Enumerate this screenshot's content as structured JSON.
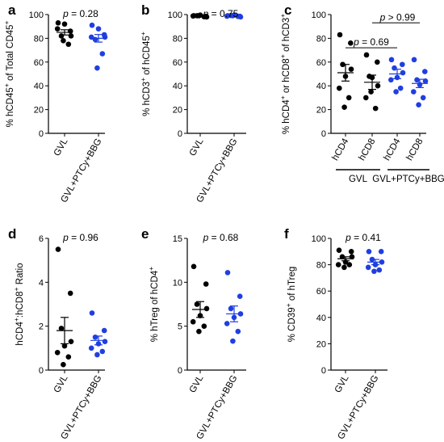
{
  "colors": {
    "GVL": "#000000",
    "GVL+PTCy+BBG": "#1f3fe0"
  },
  "chart_data": [
    {
      "panel": "a",
      "type": "scatter",
      "ylabel": "% hCD45⁺ of Total CD45⁺",
      "ylim": [
        0,
        100
      ],
      "yticks": [
        0,
        20,
        40,
        60,
        80,
        100
      ],
      "categories": [
        "GVL",
        "GVL+PTCy+BBG"
      ],
      "annotation": "p = 0.28",
      "series": [
        {
          "name": "GVL",
          "mean": 85,
          "sem": 2.2,
          "values": [
            93,
            86,
            82,
            82,
            92,
            88,
            75,
            78
          ]
        },
        {
          "name": "GVL+PTCy+BBG",
          "mean": 80,
          "sem": 3.2,
          "values": [
            91,
            83,
            79,
            81,
            88,
            81,
            67,
            55
          ]
        }
      ]
    },
    {
      "panel": "b",
      "type": "scatter",
      "ylabel": "% hCD3⁺ of hCD45⁺",
      "ylim": [
        0,
        100
      ],
      "yticks": [
        0,
        20,
        40,
        60,
        80,
        100
      ],
      "categories": [
        "GVL",
        "GVL+PTCy+BBG"
      ],
      "annotation": "p = 0.75",
      "series": [
        {
          "name": "GVL",
          "mean": 99,
          "sem": 0.3,
          "values": [
            99,
            98.5,
            99,
            98,
            99.5,
            98.8,
            98.2,
            99
          ]
        },
        {
          "name": "GVL+PTCy+BBG",
          "mean": 98.8,
          "sem": 0.3,
          "values": [
            99,
            98.5,
            99.2,
            98,
            99.5,
            98.6,
            98.4,
            99
          ]
        }
      ]
    },
    {
      "panel": "c",
      "type": "scatter",
      "ylabel": "% hCD4⁺ or hCD8⁺ of hCD3⁺",
      "ylim": [
        0,
        100
      ],
      "yticks": [
        0,
        20,
        40,
        60,
        80,
        100
      ],
      "categories": [
        "hCD4",
        "hCD8",
        "hCD4",
        "hCD8"
      ],
      "groups": [
        {
          "label": "GVL"
        },
        {
          "label": "GVL+PTCy+BBG"
        }
      ],
      "annotations": [
        "p = 0.69",
        "p > 0.99"
      ],
      "series": [
        {
          "name": "GVL hCD4",
          "mean": 51,
          "sem": 7,
          "values": [
            83,
            76,
            58,
            54,
            48,
            38,
            30,
            22
          ]
        },
        {
          "name": "GVL hCD8",
          "mean": 43,
          "sem": 6,
          "values": [
            66,
            60,
            48,
            40,
            47,
            30,
            21,
            35
          ]
        },
        {
          "name": "GVL+PTCy+BBG hCD4",
          "mean": 50,
          "sem": 4,
          "values": [
            62,
            58,
            55,
            51,
            47,
            45,
            38,
            35
          ]
        },
        {
          "name": "GVL+PTCy+BBG hCD8",
          "mean": 42,
          "sem": 3.5,
          "values": [
            62,
            52,
            45,
            44,
            41,
            35,
            30,
            24
          ]
        }
      ]
    },
    {
      "panel": "d",
      "type": "scatter",
      "ylabel": "hCD4⁺:hCD8⁺ Ratio",
      "ylim": [
        0,
        6
      ],
      "yticks": [
        0,
        2,
        4,
        6
      ],
      "categories": [
        "GVL",
        "GVL+PTCy+BBG"
      ],
      "annotation": "p = 0.96",
      "series": [
        {
          "name": "GVL",
          "mean": 1.8,
          "sem": 0.6,
          "values": [
            5.5,
            3.5,
            1.9,
            1.3,
            1.1,
            0.8,
            0.6,
            0.25
          ]
        },
        {
          "name": "GVL+PTCy+BBG",
          "mean": 1.35,
          "sem": 0.2,
          "values": [
            2.6,
            1.8,
            1.5,
            1.3,
            1.2,
            1.0,
            0.85,
            0.7
          ]
        }
      ]
    },
    {
      "panel": "e",
      "type": "scatter",
      "ylabel": "% hTreg of hCD4⁺",
      "ylim": [
        0,
        15
      ],
      "yticks": [
        0,
        5,
        10,
        15
      ],
      "categories": [
        "GVL",
        "GVL+PTCy+BBG"
      ],
      "annotation": "p = 0.68",
      "series": [
        {
          "name": "GVL",
          "mean": 6.9,
          "sem": 0.9,
          "values": [
            11.8,
            9.8,
            7.5,
            7.0,
            6.2,
            5.5,
            5.0,
            4.4
          ]
        },
        {
          "name": "GVL+PTCy+BBG",
          "mean": 6.4,
          "sem": 0.9,
          "values": [
            11.1,
            8.4,
            7.0,
            6.4,
            6.0,
            5.3,
            4.4,
            3.3
          ]
        }
      ]
    },
    {
      "panel": "f",
      "type": "scatter",
      "ylabel": "% CD39⁺ of hTreg",
      "ylim": [
        0,
        100
      ],
      "yticks": [
        0,
        20,
        40,
        60,
        80,
        100
      ],
      "categories": [
        "GVL",
        "GVL+PTCy+BBG"
      ],
      "annotation": "p = 0.41",
      "series": [
        {
          "name": "GVL",
          "mean": 84.5,
          "sem": 1.5,
          "values": [
            91,
            90,
            86,
            86,
            82,
            80,
            80,
            78
          ]
        },
        {
          "name": "GVL+PTCy+BBG",
          "mean": 82,
          "sem": 2,
          "values": [
            90,
            90,
            84,
            82,
            80,
            78,
            76,
            75
          ]
        }
      ]
    }
  ]
}
